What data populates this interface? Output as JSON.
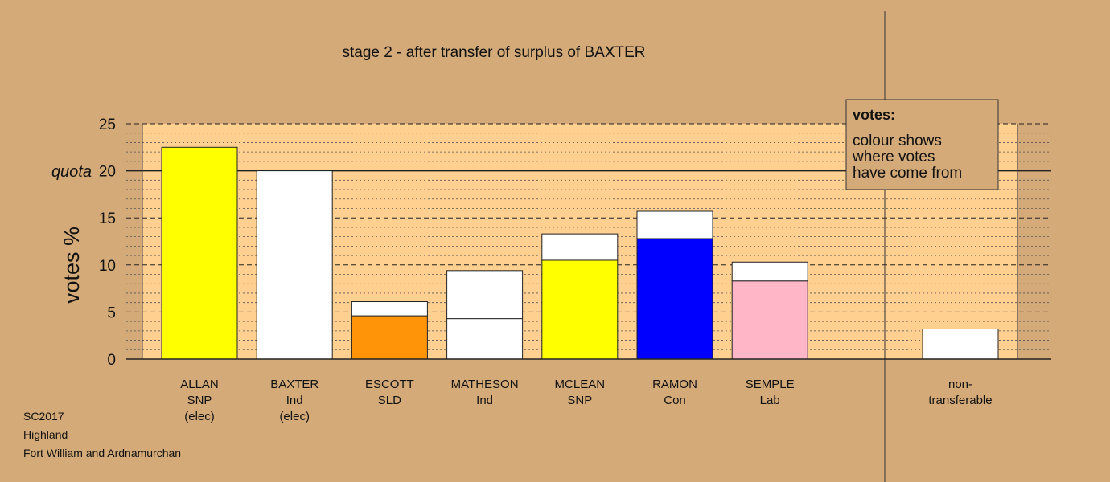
{
  "chart_data": {
    "type": "bar",
    "title": "stage 2 - after transfer of surplus of BAXTER",
    "ylabel": "votes %",
    "ylim": [
      0,
      25
    ],
    "yticks": [
      "0",
      "5",
      "10",
      "15",
      "20",
      "25"
    ],
    "quota": {
      "label": "quota",
      "value": 20
    },
    "categories": [
      {
        "lines": [
          "ALLAN",
          "SNP",
          "(elec)"
        ],
        "segments": [
          {
            "value": 22.5,
            "color": "#ffff00"
          }
        ]
      },
      {
        "lines": [
          "BAXTER",
          "Ind",
          "(elec)"
        ],
        "segments": [
          {
            "value": 20.0,
            "color": "#ffffff"
          }
        ]
      },
      {
        "lines": [
          "ESCOTT",
          "SLD"
        ],
        "segments": [
          {
            "value": 4.6,
            "color": "#ff9408"
          },
          {
            "value": 1.5,
            "color": "#ffffff"
          }
        ]
      },
      {
        "lines": [
          "MATHESON",
          "Ind"
        ],
        "segments": [
          {
            "value": 4.3,
            "color": "#ffffff"
          },
          {
            "value": 5.1,
            "color": "#ffffff"
          }
        ]
      },
      {
        "lines": [
          "MCLEAN",
          "SNP"
        ],
        "segments": [
          {
            "value": 10.5,
            "color": "#ffff00"
          },
          {
            "value": 2.8,
            "color": "#ffffff"
          }
        ]
      },
      {
        "lines": [
          "RAMON",
          "Con"
        ],
        "segments": [
          {
            "value": 12.8,
            "color": "#0000ff"
          },
          {
            "value": 2.9,
            "color": "#ffffff"
          }
        ]
      },
      {
        "lines": [
          "SEMPLE",
          "Lab"
        ],
        "segments": [
          {
            "value": 8.3,
            "color": "#ffb6c6"
          },
          {
            "value": 2.0,
            "color": "#ffffff"
          }
        ]
      }
    ],
    "nontransferable": {
      "lines": [
        "non-",
        "transferable"
      ],
      "value": 3.2,
      "color": "#ffffff"
    },
    "legend": {
      "title": "votes:",
      "lines": [
        "colour shows",
        "where votes",
        "have come from"
      ]
    },
    "grid": true,
    "colors": {
      "background": "#d4aa78",
      "plot": "#ffd090"
    }
  },
  "footer": {
    "line1": "SC2017",
    "line2": "Highland",
    "line3": "Fort William and Ardnamurchan"
  }
}
